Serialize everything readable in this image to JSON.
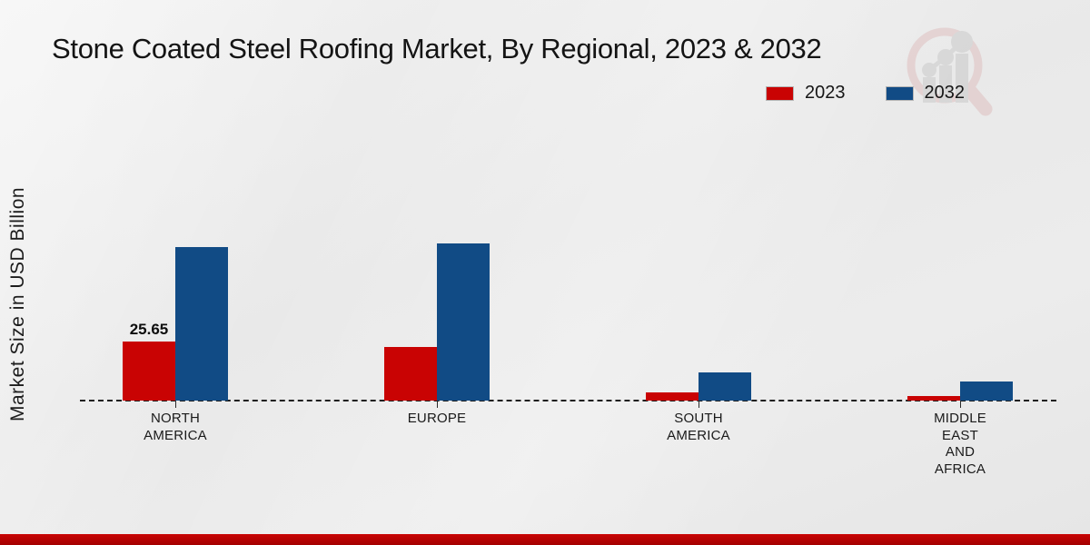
{
  "page": {
    "title": "Stone Coated Steel Roofing Market, By Regional, 2023 & 2032"
  },
  "legend": {
    "items": [
      {
        "label": "2023",
        "color": "#c90303"
      },
      {
        "label": "2032",
        "color": "#114b85"
      }
    ]
  },
  "y_axis": {
    "label": "Market Size in USD Billion"
  },
  "watermark": {
    "icon": "magnifier-bar-chart-logo"
  },
  "footer": {
    "accent_color": "#b40000"
  },
  "chart_data": {
    "type": "bar",
    "title": "Stone Coated Steel Roofing Market, By Regional, 2023 & 2032",
    "xlabel": "",
    "ylabel": "Market Size in USD Billion",
    "units": "USD Billion",
    "categories": [
      "NORTH AMERICA",
      "EUROPE",
      "SOUTH AMERICA",
      "MIDDLE EAST AND AFRICA"
    ],
    "category_label_lines": [
      [
        "NORTH",
        "AMERICA"
      ],
      [
        "EUROPE"
      ],
      [
        "SOUTH",
        "AMERICA"
      ],
      [
        "MIDDLE",
        "EAST",
        "AND",
        "AFRICA"
      ]
    ],
    "series": [
      {
        "name": "2023",
        "color": "#c90303",
        "values": [
          25.65,
          23.3,
          3.4,
          2.1
        ]
      },
      {
        "name": "2032",
        "color": "#114b85",
        "values": [
          66.7,
          68.3,
          12.2,
          8.3
        ]
      }
    ],
    "data_labels": [
      [
        "25.65",
        "",
        "",
        ""
      ],
      [
        "",
        "",
        "",
        ""
      ]
    ],
    "ylim": [
      0,
      75
    ],
    "grid": false,
    "axis_ticks_labeled": false,
    "baseline_style": "dashed",
    "legend_position": "top-right"
  }
}
